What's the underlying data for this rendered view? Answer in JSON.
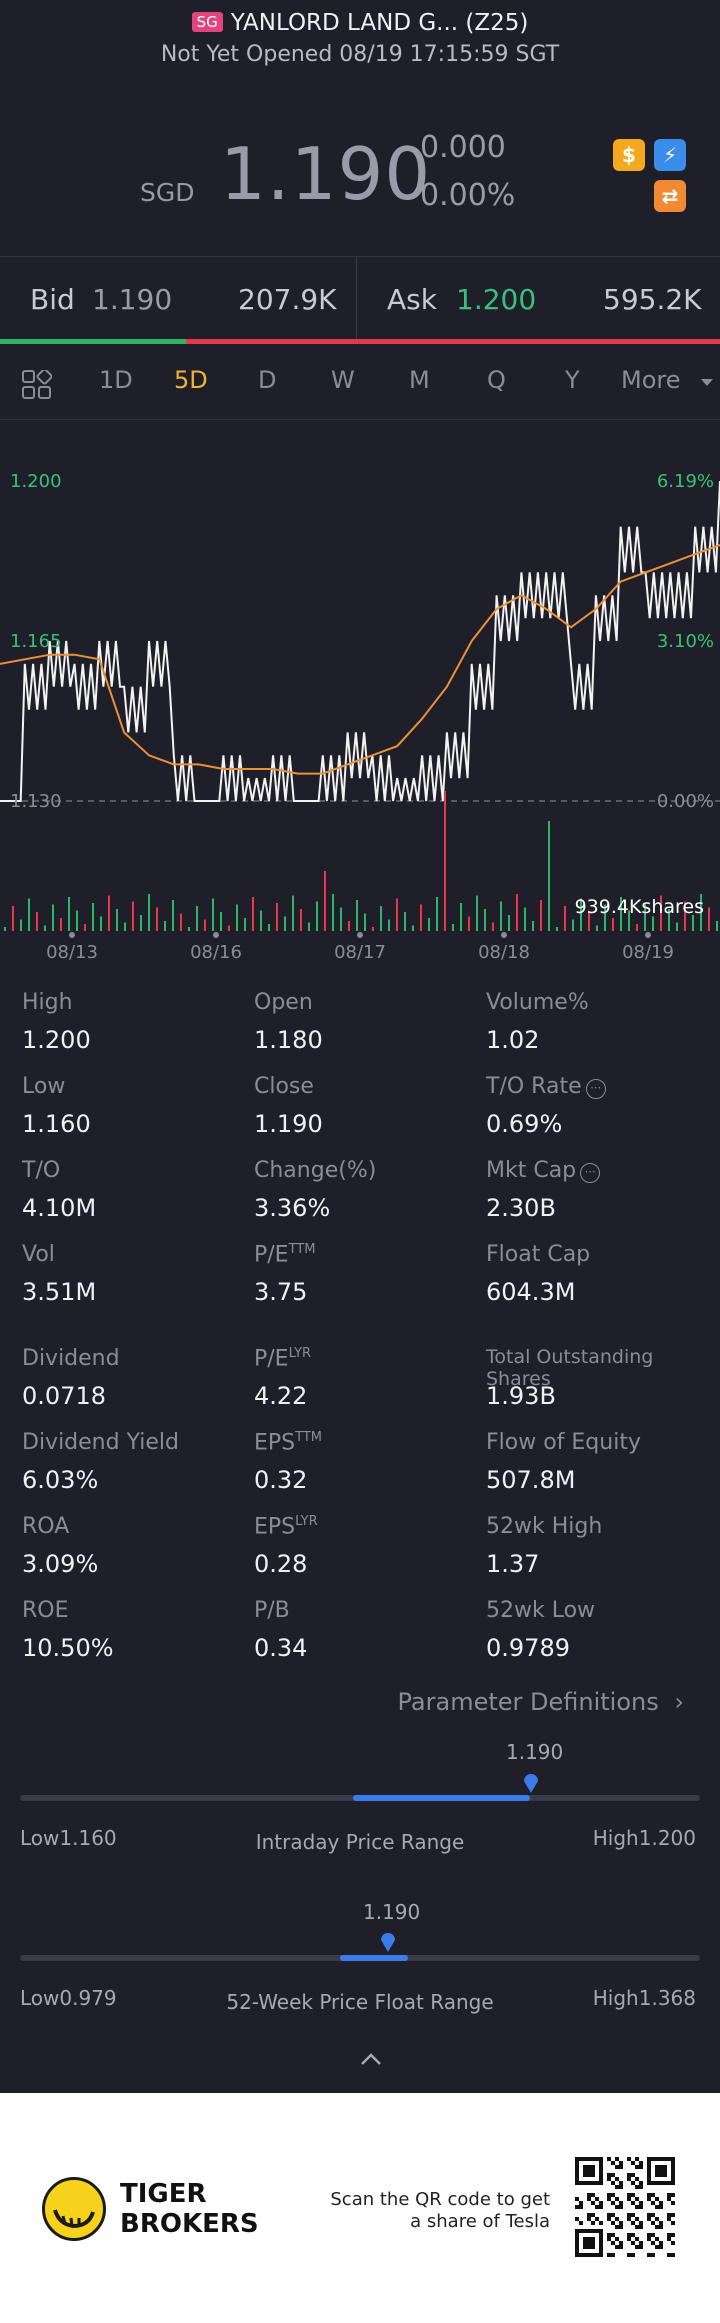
{
  "header": {
    "market_badge": "SG",
    "title": "YANLORD LAND G... (Z25)",
    "status": "Not Yet Opened 08/19 17:15:59 SGT",
    "currency": "SGD",
    "price": "1.190",
    "change": "0.000",
    "change_pct": "0.00%",
    "icons": [
      "dollar-icon",
      "lightning-icon",
      "swap-icon"
    ]
  },
  "quote": {
    "bid_label": "Bid",
    "bid_price": "1.190",
    "bid_size": "207.9K",
    "ask_label": "Ask",
    "ask_price": "1.200",
    "ask_size": "595.2K",
    "bid_ratio": 0.26
  },
  "tabs": [
    "1D",
    "5D",
    "D",
    "W",
    "M",
    "Q",
    "Y",
    "More"
  ],
  "active_tab": "5D",
  "chart_data": {
    "type": "line",
    "y_left_ticks": [
      "1.200",
      "1.165",
      "1.130"
    ],
    "y_right_ticks": [
      "6.19%",
      "3.10%",
      "0.00%"
    ],
    "x_labels": [
      "08/13",
      "08/16",
      "08/17",
      "08/18",
      "08/19"
    ],
    "volume_label": "939.4Kshares",
    "ylim": [
      1.13,
      1.2
    ],
    "baseline": 1.13,
    "series": [
      {
        "name": "price",
        "values": [
          1.13,
          1.16,
          1.165,
          1.16,
          1.165,
          1.155,
          1.165,
          1.14,
          1.13,
          1.14,
          1.135,
          1.14,
          1.13,
          1.14,
          1.145,
          1.14,
          1.135,
          1.14,
          1.145,
          1.16,
          1.175,
          1.18,
          1.18,
          1.16,
          1.175,
          1.19,
          1.18,
          1.18,
          1.19,
          1.2
        ]
      },
      {
        "name": "avg",
        "values": [
          1.16,
          1.161,
          1.162,
          1.162,
          1.161,
          1.145,
          1.14,
          1.138,
          1.138,
          1.137,
          1.137,
          1.137,
          1.136,
          1.136,
          1.138,
          1.14,
          1.142,
          1.148,
          1.155,
          1.165,
          1.172,
          1.175,
          1.172,
          1.168,
          1.172,
          1.178,
          1.18,
          1.182,
          1.184,
          1.186
        ]
      }
    ]
  },
  "stats": [
    {
      "label": "High",
      "value": "1.200"
    },
    {
      "label": "Open",
      "value": "1.180"
    },
    {
      "label": "Volume%",
      "value": "1.02"
    },
    {
      "label": "Low",
      "value": "1.160"
    },
    {
      "label": "Close",
      "value": "1.190"
    },
    {
      "label": "T/O Rate",
      "value": "0.69%"
    },
    {
      "label": "T/O",
      "value": "4.10M"
    },
    {
      "label": "Change(%)",
      "value": "3.36%"
    },
    {
      "label": "Mkt Cap",
      "value": "2.30B"
    },
    {
      "label": "Vol",
      "value": "3.51M"
    },
    {
      "label": "P/E",
      "sup": "TTM",
      "value": "3.75"
    },
    {
      "label": "Float Cap",
      "value": "604.3M"
    },
    {
      "label": "Dividend",
      "value": "0.0718"
    },
    {
      "label": "P/E",
      "sup": "LYR",
      "value": "4.22"
    },
    {
      "label": "Total Outstanding Shares",
      "value": "1.93B"
    },
    {
      "label": "Dividend Yield",
      "value": "6.03%"
    },
    {
      "label": "EPS",
      "sup": "TTM",
      "value": "0.32"
    },
    {
      "label": "Flow of Equity",
      "value": "507.8M"
    },
    {
      "label": "ROA",
      "value": "3.09%"
    },
    {
      "label": "EPS",
      "sup": "LYR",
      "value": "0.28"
    },
    {
      "label": "52wk High",
      "value": "1.37"
    },
    {
      "label": "ROE",
      "value": "10.50%"
    },
    {
      "label": "P/B",
      "value": "0.34"
    },
    {
      "label": "52wk Low",
      "value": "0.9789"
    }
  ],
  "param_link": "Parameter Definitions",
  "intraday": {
    "current": "1.190",
    "low": "Low1.160",
    "high": "High1.200",
    "label": "Intraday Price Range",
    "fill_start": 0.49,
    "fill_end": 0.75
  },
  "week52": {
    "current": "1.190",
    "low": "Low0.979",
    "high": "High1.368",
    "label": "52-Week Price Float Range",
    "fill_start": 0.47,
    "fill_end": 0.57
  },
  "footer": {
    "brand_line1": "TIGER",
    "brand_line2": "BROKERS",
    "scan_text": "Scan the QR code to get a share of Tesla"
  }
}
